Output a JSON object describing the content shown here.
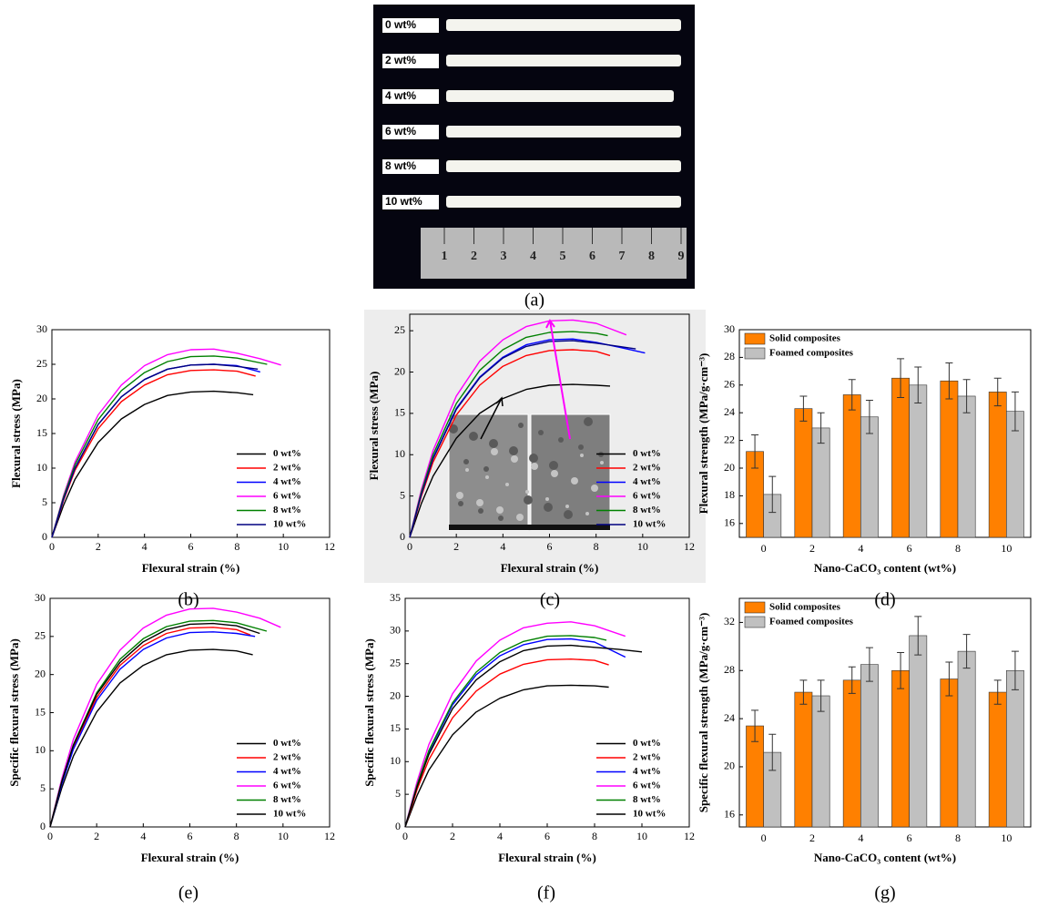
{
  "photo": {
    "labels": [
      "0 wt%",
      "2 wt%",
      "4 wt%",
      "6 wt%",
      "8 wt%",
      "10 wt%"
    ],
    "ruler": [
      "1",
      "2",
      "3",
      "4",
      "5",
      "6",
      "7",
      "8",
      "9"
    ],
    "caption": "(a)"
  },
  "chart_data": [
    {
      "type": "line",
      "caption": "(b)",
      "xlabel": "Flexural strain (%)",
      "ylabel": "Flexural stress (MPa)",
      "xlim": [
        0,
        12
      ],
      "xticks": [
        0,
        2,
        4,
        6,
        8,
        10,
        12
      ],
      "ylim": [
        0,
        30
      ],
      "yticks": [
        0,
        5,
        10,
        15,
        20,
        25,
        30
      ],
      "legend": "lower right",
      "series": [
        {
          "name": "0 wt%",
          "color": "#000000",
          "x": [
            0,
            0.5,
            1,
            2,
            3,
            4,
            5,
            6,
            7,
            8,
            8.7
          ],
          "values": [
            0,
            4.6,
            8.4,
            13.7,
            17.1,
            19.2,
            20.5,
            21.0,
            21.1,
            20.9,
            20.6
          ]
        },
        {
          "name": "2 wt%",
          "color": "#ff0000",
          "x": [
            0,
            0.5,
            1,
            2,
            3,
            4,
            5,
            6,
            7,
            8,
            8.8
          ],
          "values": [
            0,
            5.3,
            9.7,
            15.7,
            19.6,
            22.0,
            23.5,
            24.1,
            24.2,
            24.0,
            23.3
          ]
        },
        {
          "name": "4 wt%",
          "color": "#0000ff",
          "x": [
            0,
            0.5,
            1,
            2,
            3,
            4,
            5,
            6,
            7,
            8,
            9.0
          ],
          "values": [
            0,
            5.5,
            10.0,
            16.3,
            20.3,
            22.8,
            24.3,
            24.9,
            25.0,
            24.8,
            23.9
          ]
        },
        {
          "name": "6 wt%",
          "color": "#ff00ff",
          "x": [
            0,
            0.5,
            1,
            2,
            3,
            4,
            5,
            6,
            7,
            8,
            9,
            9.9
          ],
          "values": [
            0,
            6.0,
            10.9,
            17.7,
            22.0,
            24.8,
            26.4,
            27.1,
            27.2,
            26.6,
            25.8,
            24.9
          ]
        },
        {
          "name": "8 wt%",
          "color": "#008000",
          "x": [
            0,
            0.5,
            1,
            2,
            3,
            4,
            5,
            6,
            7,
            8,
            9.3
          ],
          "values": [
            0,
            5.8,
            10.5,
            17.0,
            21.2,
            23.8,
            25.4,
            26.1,
            26.2,
            25.9,
            25.0
          ]
        },
        {
          "name": "10 wt%",
          "color": "#000080",
          "x": [
            0,
            0.5,
            1,
            2,
            3,
            4,
            5,
            6,
            7,
            8,
            8.9
          ],
          "values": [
            0,
            5.5,
            10.0,
            16.3,
            20.3,
            22.8,
            24.3,
            24.9,
            25.0,
            24.7,
            24.3
          ]
        }
      ]
    },
    {
      "type": "line",
      "caption": "(c)",
      "xlabel": "Flexural strain (%)",
      "ylabel": "Flexural stress (MPa)",
      "xlim": [
        0,
        12
      ],
      "xticks": [
        0,
        2,
        4,
        6,
        8,
        10,
        12
      ],
      "ylim": [
        0,
        27
      ],
      "yticks": [
        0,
        5,
        10,
        15,
        20,
        25
      ],
      "legend": "lower right",
      "series": [
        {
          "name": "0 wt%",
          "color": "#000000",
          "x": [
            0,
            0.5,
            1,
            2,
            3,
            4,
            5,
            6,
            7,
            8,
            8.6
          ],
          "values": [
            0,
            4.1,
            7.4,
            12.0,
            15.0,
            16.8,
            17.9,
            18.4,
            18.5,
            18.4,
            18.3
          ]
        },
        {
          "name": "2 wt%",
          "color": "#ff0000",
          "x": [
            0,
            0.5,
            1,
            2,
            3,
            4,
            5,
            6,
            7,
            8,
            8.6
          ],
          "values": [
            0,
            5.0,
            9.1,
            14.8,
            18.4,
            20.7,
            22.0,
            22.6,
            22.7,
            22.5,
            22.0
          ]
        },
        {
          "name": "4 wt%",
          "color": "#0000ff",
          "x": [
            0,
            0.5,
            1,
            2,
            3,
            4,
            5,
            6,
            7,
            8,
            9,
            10.1
          ],
          "values": [
            0,
            5.3,
            9.6,
            15.6,
            19.4,
            21.8,
            23.3,
            23.9,
            24.0,
            23.6,
            23.0,
            22.3
          ]
        },
        {
          "name": "6 wt%",
          "color": "#ff00ff",
          "x": [
            0,
            0.5,
            1,
            2,
            3,
            4,
            5,
            6,
            7,
            8,
            9.3
          ],
          "values": [
            0,
            5.8,
            10.5,
            17.1,
            21.3,
            23.9,
            25.5,
            26.2,
            26.3,
            25.9,
            24.5
          ]
        },
        {
          "name": "8 wt%",
          "color": "#008000",
          "x": [
            0,
            0.5,
            1,
            2,
            3,
            4,
            5,
            6,
            7,
            8,
            8.5
          ],
          "values": [
            0,
            5.5,
            10.0,
            16.2,
            20.2,
            22.7,
            24.2,
            24.8,
            24.9,
            24.7,
            24.4
          ]
        },
        {
          "name": "10 wt%",
          "color": "#000080",
          "x": [
            0,
            0.5,
            1,
            2,
            3,
            4,
            5,
            6,
            7,
            8,
            9,
            9.7
          ],
          "values": [
            0,
            5.2,
            9.5,
            15.5,
            19.3,
            21.7,
            23.1,
            23.7,
            23.8,
            23.5,
            23.1,
            22.8
          ]
        }
      ]
    },
    {
      "type": "bar",
      "caption": "(d)",
      "xlabel": "Nano-CaCO₃ content (wt%)",
      "ylabel": "Flexural strength (MPa/g·cm⁻³)",
      "categories": [
        0,
        2,
        4,
        6,
        8,
        10
      ],
      "ylim": [
        15,
        30
      ],
      "yticks": [
        16,
        18,
        20,
        22,
        24,
        26,
        28,
        30
      ],
      "legend": "upper left",
      "series": [
        {
          "name": "Solid composites",
          "color": "#ff8000",
          "values": [
            21.2,
            24.3,
            25.3,
            26.5,
            26.3,
            25.5
          ],
          "errors": [
            1.2,
            0.9,
            1.1,
            1.4,
            1.3,
            1.0
          ]
        },
        {
          "name": "Foamed composites",
          "color": "#c0c0c0",
          "values": [
            18.1,
            22.9,
            23.7,
            26.0,
            25.2,
            24.1
          ],
          "errors": [
            1.3,
            1.1,
            1.2,
            1.3,
            1.2,
            1.4
          ]
        }
      ]
    },
    {
      "type": "line",
      "caption": "(e)",
      "xlabel": "Flexural strain (%)",
      "ylabel": "Specific flexural stress (MPa)",
      "xlim": [
        0,
        12
      ],
      "xticks": [
        0,
        2,
        4,
        6,
        8,
        10,
        12
      ],
      "ylim": [
        0,
        30
      ],
      "yticks": [
        0,
        5,
        10,
        15,
        20,
        25,
        30
      ],
      "legend": "lower right",
      "series": [
        {
          "name": "0 wt%",
          "color": "#000000",
          "x": [
            0,
            0.5,
            1,
            2,
            3,
            4,
            5,
            6,
            7,
            8,
            8.7
          ],
          "values": [
            0,
            5.1,
            9.3,
            15.1,
            18.9,
            21.2,
            22.6,
            23.2,
            23.3,
            23.1,
            22.6
          ]
        },
        {
          "name": "2 wt%",
          "color": "#ff0000",
          "x": [
            0,
            0.5,
            1,
            2,
            3,
            4,
            5,
            6,
            7,
            8,
            8.6
          ],
          "values": [
            0,
            5.8,
            10.5,
            17.0,
            21.2,
            23.8,
            25.4,
            26.1,
            26.2,
            25.9,
            25.2
          ]
        },
        {
          "name": "4 wt%",
          "color": "#0000ff",
          "x": [
            0,
            0.5,
            1,
            2,
            3,
            4,
            5,
            6,
            7,
            8,
            8.8
          ],
          "values": [
            0,
            5.6,
            10.2,
            16.6,
            20.7,
            23.3,
            24.8,
            25.5,
            25.6,
            25.4,
            25.0
          ]
        },
        {
          "name": "6 wt%",
          "color": "#ff00ff",
          "x": [
            0,
            0.5,
            1,
            2,
            3,
            4,
            5,
            6,
            7,
            8,
            9,
            9.9
          ],
          "values": [
            0,
            6.3,
            11.5,
            18.7,
            23.2,
            26.1,
            27.8,
            28.6,
            28.7,
            28.2,
            27.4,
            26.2
          ]
        },
        {
          "name": "8 wt%",
          "color": "#008000",
          "x": [
            0,
            0.5,
            1,
            2,
            3,
            4,
            5,
            6,
            7,
            8,
            9.3
          ],
          "values": [
            0,
            6.0,
            10.8,
            17.6,
            22.0,
            24.7,
            26.3,
            27.0,
            27.1,
            26.8,
            25.7
          ]
        },
        {
          "name": "10 wt%",
          "color": "#000000",
          "x": [
            0,
            0.5,
            1,
            2,
            3,
            4,
            5,
            6,
            7,
            8,
            9.0
          ],
          "values": [
            0,
            5.9,
            10.7,
            17.4,
            21.6,
            24.3,
            25.9,
            26.6,
            26.7,
            26.4,
            25.4
          ]
        }
      ]
    },
    {
      "type": "line",
      "caption": "(f)",
      "xlabel": "Flexural strain (%)",
      "ylabel": "Specific flexural stress (MPa)",
      "xlim": [
        0,
        12
      ],
      "xticks": [
        0,
        2,
        4,
        6,
        8,
        10,
        12
      ],
      "ylim": [
        0,
        35
      ],
      "yticks": [
        0,
        5,
        10,
        15,
        20,
        25,
        30,
        35
      ],
      "legend": "lower right",
      "series": [
        {
          "name": "0 wt%",
          "color": "#000000",
          "x": [
            0,
            0.5,
            1,
            2,
            3,
            4,
            5,
            6,
            7,
            8,
            8.6
          ],
          "values": [
            0,
            4.8,
            8.7,
            14.1,
            17.6,
            19.7,
            21.0,
            21.6,
            21.7,
            21.6,
            21.4
          ]
        },
        {
          "name": "2 wt%",
          "color": "#ff0000",
          "x": [
            0,
            0.5,
            1,
            2,
            3,
            4,
            5,
            6,
            7,
            8,
            8.6
          ],
          "values": [
            0,
            5.7,
            10.3,
            16.7,
            20.8,
            23.4,
            24.9,
            25.6,
            25.7,
            25.5,
            24.8
          ]
        },
        {
          "name": "4 wt%",
          "color": "#0000ff",
          "x": [
            0,
            0.5,
            1,
            2,
            3,
            4,
            5,
            6,
            7,
            8,
            9.3
          ],
          "values": [
            0,
            6.3,
            11.5,
            18.7,
            23.3,
            26.2,
            27.9,
            28.7,
            28.8,
            28.3,
            26.0
          ]
        },
        {
          "name": "6 wt%",
          "color": "#ff00ff",
          "x": [
            0,
            0.5,
            1,
            2,
            3,
            4,
            5,
            6,
            7,
            8,
            9.3
          ],
          "values": [
            0,
            6.9,
            12.6,
            20.4,
            25.4,
            28.6,
            30.5,
            31.2,
            31.4,
            30.8,
            29.2
          ]
        },
        {
          "name": "8 wt%",
          "color": "#008000",
          "x": [
            0,
            0.5,
            1,
            2,
            3,
            4,
            5,
            6,
            7,
            8,
            8.5
          ],
          "values": [
            0,
            6.4,
            11.7,
            19.0,
            23.7,
            26.7,
            28.4,
            29.2,
            29.3,
            29.0,
            28.6
          ]
        },
        {
          "name": "10 wt%",
          "color": "#000000",
          "x": [
            0,
            0.5,
            1,
            2,
            3,
            4,
            5,
            6,
            7,
            8,
            9,
            10
          ],
          "values": [
            0,
            6.1,
            11.1,
            18.1,
            22.5,
            25.3,
            27.0,
            27.7,
            27.8,
            27.5,
            27.2,
            26.8
          ]
        }
      ]
    },
    {
      "type": "bar",
      "caption": "(g)",
      "xlabel": "Nano-CaCO₃ content (wt%)",
      "ylabel": "Specific flexural strength (MPa/g·cm⁻³)",
      "categories": [
        0,
        2,
        4,
        6,
        8,
        10
      ],
      "ylim": [
        15,
        34
      ],
      "yticks": [
        16,
        20,
        24,
        28,
        32
      ],
      "legend": "upper left",
      "series": [
        {
          "name": "Solid composites",
          "color": "#ff8000",
          "values": [
            23.4,
            26.2,
            27.2,
            28.0,
            27.3,
            26.2
          ],
          "errors": [
            1.3,
            1.0,
            1.1,
            1.5,
            1.4,
            1.0
          ]
        },
        {
          "name": "Foamed composites",
          "color": "#c0c0c0",
          "values": [
            21.2,
            25.9,
            28.5,
            30.9,
            29.6,
            28.0
          ],
          "errors": [
            1.5,
            1.3,
            1.4,
            1.6,
            1.4,
            1.6
          ]
        }
      ]
    }
  ]
}
